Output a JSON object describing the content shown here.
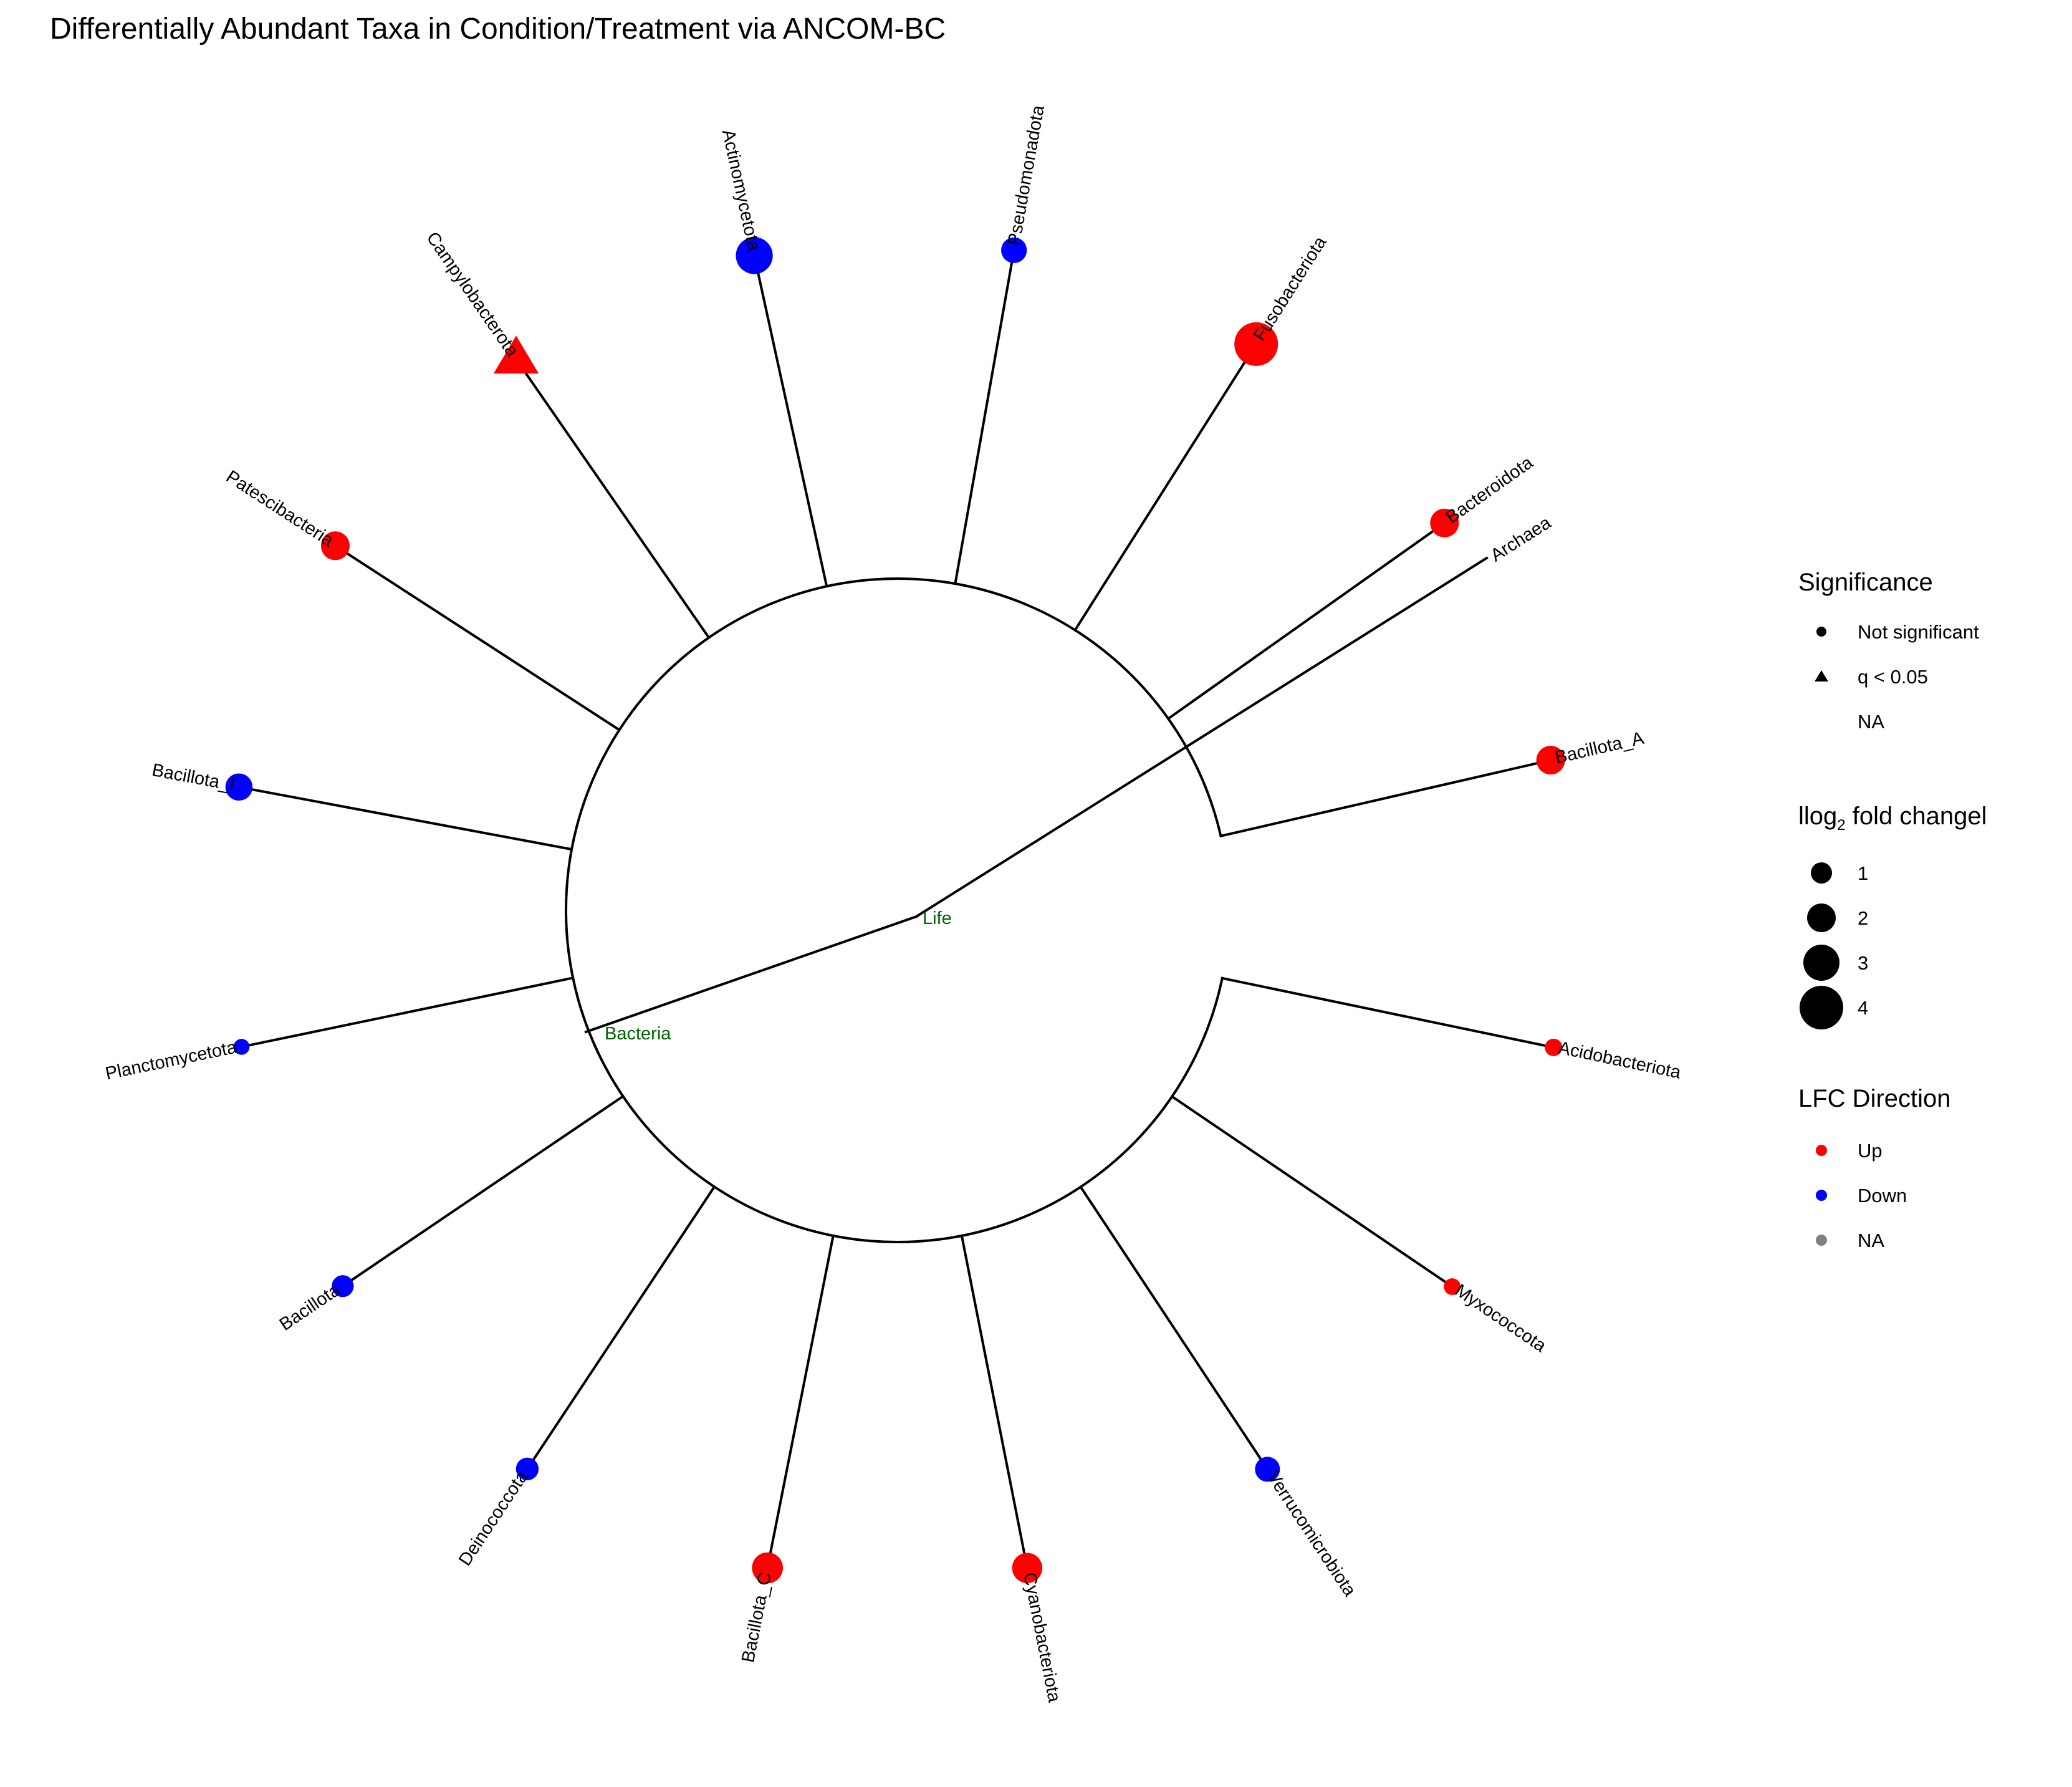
{
  "chart_data": {
    "type": "circular-tree",
    "title": "Differentially Abundant Taxa in Condition/Treatment via ANCOM-BC",
    "root": "Life",
    "internal_node": "Bacteria",
    "outgroup": "Archaea",
    "tips": [
      {
        "label": "Acidobacteriota",
        "direction": "Up",
        "significance": "Not significant",
        "abs_lfc": 0.5
      },
      {
        "label": "Myxococcota",
        "direction": "Up",
        "significance": "Not significant",
        "abs_lfc": 0.4
      },
      {
        "label": "Verrucomicrobiota",
        "direction": "Down",
        "significance": "Not significant",
        "abs_lfc": 1.5
      },
      {
        "label": "Cyanobacteriota",
        "direction": "Up",
        "significance": "Not significant",
        "abs_lfc": 2.2
      },
      {
        "label": "Bacillota_C",
        "direction": "Up",
        "significance": "Not significant",
        "abs_lfc": 2.3
      },
      {
        "label": "Deinococcota",
        "direction": "Down",
        "significance": "Not significant",
        "abs_lfc": 1.2
      },
      {
        "label": "Bacillota",
        "direction": "Down",
        "significance": "Not significant",
        "abs_lfc": 1.1
      },
      {
        "label": "Planctomycetota",
        "direction": "Down",
        "significance": "Not significant",
        "abs_lfc": 0.3
      },
      {
        "label": "Bacillota_I",
        "direction": "Down",
        "significance": "Not significant",
        "abs_lfc": 1.8
      },
      {
        "label": "Patescibacteria",
        "direction": "Up",
        "significance": "Not significant",
        "abs_lfc": 2.0
      },
      {
        "label": "Campylobacterota",
        "direction": "Up",
        "significance": "q < 0.05",
        "abs_lfc": 4.0
      },
      {
        "label": "Actinomycetota",
        "direction": "Down",
        "significance": "Not significant",
        "abs_lfc": 3.1
      },
      {
        "label": "Pseudomonadota",
        "direction": "Down",
        "significance": "Not significant",
        "abs_lfc": 1.6
      },
      {
        "label": "Fusobacteriota",
        "direction": "Up",
        "significance": "Not significant",
        "abs_lfc": 4.0
      },
      {
        "label": "Bacteroidota",
        "direction": "Up",
        "significance": "Not significant",
        "abs_lfc": 2.0
      },
      {
        "label": "Bacillota_A",
        "direction": "Up",
        "significance": "Not significant",
        "abs_lfc": 2.0
      }
    ],
    "legend": {
      "significance": {
        "title": "Significance",
        "items": [
          {
            "label": "Not significant",
            "shape": "circle"
          },
          {
            "label": "q < 0.05",
            "shape": "triangle"
          },
          {
            "label": "NA",
            "shape": "none"
          }
        ]
      },
      "size": {
        "title_prefix": "llog",
        "title_sub": "2",
        "title_suffix": " fold changel",
        "items": [
          "1",
          "2",
          "3",
          "4"
        ]
      },
      "direction": {
        "title": "LFC Direction",
        "items": [
          {
            "label": "Up",
            "color": "#ff0000"
          },
          {
            "label": "Down",
            "color": "#0000ff"
          },
          {
            "label": "NA",
            "color": "#808080"
          }
        ]
      },
      "placement": "right"
    },
    "colors": {
      "Up": "#ff0000",
      "Down": "#0000ff",
      "NA": "#808080",
      "node_label": "#006400"
    }
  }
}
